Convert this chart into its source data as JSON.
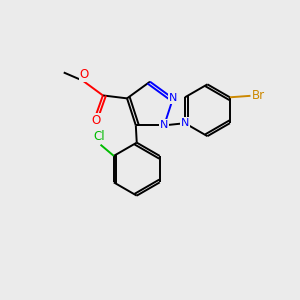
{
  "background_color": "#EBEBEB",
  "bond_color": "#000000",
  "atom_colors": {
    "N": "#0000FF",
    "O": "#FF0000",
    "Cl": "#00BB00",
    "Br": "#CC8800",
    "C": "#000000"
  },
  "figsize": [
    3.0,
    3.0
  ],
  "dpi": 100
}
